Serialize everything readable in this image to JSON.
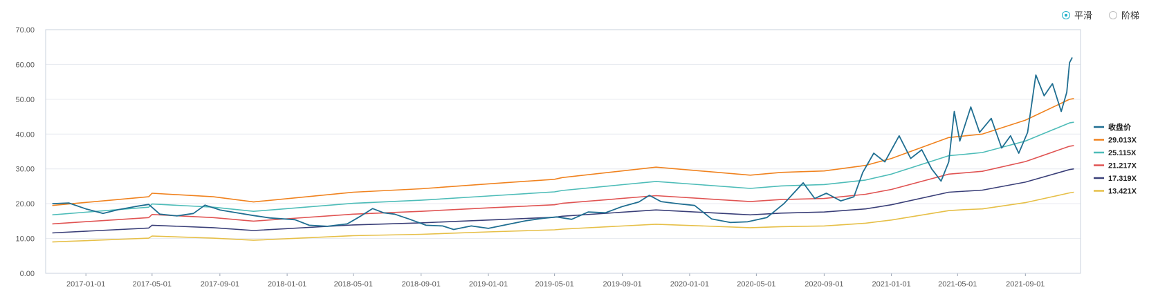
{
  "toolbar": {
    "options": [
      {
        "label": "平滑",
        "selected": true
      },
      {
        "label": "阶梯",
        "selected": false
      }
    ]
  },
  "chart_data": {
    "type": "line",
    "ylim": [
      0,
      70
    ],
    "y_ticks": [
      "0.00",
      "10.00",
      "20.00",
      "30.00",
      "40.00",
      "50.00",
      "60.00",
      "70.00"
    ],
    "x_range": [
      "2016-10-20",
      "2021-12-10"
    ],
    "x_ticks": [
      "2017-01-01",
      "2017-05-01",
      "2017-09-01",
      "2018-01-01",
      "2018-05-01",
      "2018-09-01",
      "2019-01-01",
      "2019-05-01",
      "2019-09-01",
      "2020-01-01",
      "2020-05-01",
      "2020-09-01",
      "2021-01-01",
      "2021-05-01",
      "2021-09-01"
    ],
    "grid": "horizontal",
    "legend_position": "right",
    "series": [
      {
        "name": "收盘价",
        "color": "#1f6e91",
        "points": [
          [
            "2016-11-01",
            20.0
          ],
          [
            "2016-12-01",
            20.2
          ],
          [
            "2017-01-01",
            18.5
          ],
          [
            "2017-02-01",
            17.2
          ],
          [
            "2017-03-01",
            18.3
          ],
          [
            "2017-04-01",
            19.2
          ],
          [
            "2017-04-25",
            19.8
          ],
          [
            "2017-05-15",
            17.0
          ],
          [
            "2017-06-15",
            16.5
          ],
          [
            "2017-07-15",
            17.2
          ],
          [
            "2017-08-05",
            19.6
          ],
          [
            "2017-09-01",
            18.2
          ],
          [
            "2017-10-01",
            17.4
          ],
          [
            "2017-11-01",
            16.6
          ],
          [
            "2017-12-01",
            15.9
          ],
          [
            "2018-01-15",
            15.4
          ],
          [
            "2018-02-10",
            13.8
          ],
          [
            "2018-03-15",
            13.5
          ],
          [
            "2018-04-20",
            14.2
          ],
          [
            "2018-05-15",
            16.5
          ],
          [
            "2018-06-05",
            18.6
          ],
          [
            "2018-06-25",
            17.4
          ],
          [
            "2018-07-15",
            17.0
          ],
          [
            "2018-08-10",
            15.6
          ],
          [
            "2018-09-10",
            13.8
          ],
          [
            "2018-10-10",
            13.6
          ],
          [
            "2018-10-30",
            12.6
          ],
          [
            "2018-12-01",
            13.6
          ],
          [
            "2019-01-01",
            12.9
          ],
          [
            "2019-02-10",
            14.2
          ],
          [
            "2019-03-10",
            15.1
          ],
          [
            "2019-04-10",
            15.8
          ],
          [
            "2019-05-05",
            16.2
          ],
          [
            "2019-06-01",
            15.5
          ],
          [
            "2019-07-01",
            17.6
          ],
          [
            "2019-08-01",
            17.4
          ],
          [
            "2019-09-01",
            19.2
          ],
          [
            "2019-10-01",
            20.5
          ],
          [
            "2019-10-20",
            22.4
          ],
          [
            "2019-11-10",
            20.6
          ],
          [
            "2019-12-10",
            20.0
          ],
          [
            "2020-01-10",
            19.5
          ],
          [
            "2020-02-10",
            15.6
          ],
          [
            "2020-03-15",
            14.6
          ],
          [
            "2020-04-15",
            14.8
          ],
          [
            "2020-05-20",
            16.0
          ],
          [
            "2020-06-20",
            20.0
          ],
          [
            "2020-07-25",
            26.0
          ],
          [
            "2020-08-15",
            21.5
          ],
          [
            "2020-09-05",
            23.0
          ],
          [
            "2020-10-01",
            20.8
          ],
          [
            "2020-10-25",
            22.0
          ],
          [
            "2020-11-10",
            29.0
          ],
          [
            "2020-11-30",
            34.5
          ],
          [
            "2020-12-20",
            32.0
          ],
          [
            "2021-01-15",
            39.5
          ],
          [
            "2021-02-05",
            33.0
          ],
          [
            "2021-02-25",
            35.5
          ],
          [
            "2021-03-15",
            30.0
          ],
          [
            "2021-04-01",
            26.5
          ],
          [
            "2021-04-15",
            32.0
          ],
          [
            "2021-04-25",
            46.5
          ],
          [
            "2021-05-05",
            38.0
          ],
          [
            "2021-05-25",
            47.8
          ],
          [
            "2021-06-10",
            40.5
          ],
          [
            "2021-07-01",
            44.5
          ],
          [
            "2021-07-20",
            36.0
          ],
          [
            "2021-08-05",
            39.5
          ],
          [
            "2021-08-20",
            34.5
          ],
          [
            "2021-09-05",
            40.5
          ],
          [
            "2021-09-20",
            57.0
          ],
          [
            "2021-10-05",
            51.0
          ],
          [
            "2021-10-20",
            54.5
          ],
          [
            "2021-11-05",
            46.5
          ],
          [
            "2021-11-15",
            52.0
          ],
          [
            "2021-11-20",
            60.5
          ],
          [
            "2021-11-25",
            62.0
          ]
        ]
      },
      {
        "name": "29.013X",
        "color": "#f0821e",
        "points": [
          [
            "2016-11-01",
            19.5
          ],
          [
            "2017-04-25",
            22.0
          ],
          [
            "2017-05-01",
            23.0
          ],
          [
            "2017-08-20",
            22.0
          ],
          [
            "2017-11-01",
            20.5
          ],
          [
            "2018-05-01",
            23.3
          ],
          [
            "2018-09-01",
            24.3
          ],
          [
            "2019-01-01",
            25.7
          ],
          [
            "2019-05-01",
            27.0
          ],
          [
            "2019-05-15",
            27.5
          ],
          [
            "2019-11-01",
            30.5
          ],
          [
            "2020-04-20",
            28.2
          ],
          [
            "2020-06-15",
            29.0
          ],
          [
            "2020-09-01",
            29.4
          ],
          [
            "2020-11-15",
            31.0
          ],
          [
            "2021-01-01",
            33.0
          ],
          [
            "2021-04-15",
            39.0
          ],
          [
            "2021-05-15",
            39.5
          ],
          [
            "2021-06-15",
            40.0
          ],
          [
            "2021-09-01",
            44.0
          ],
          [
            "2021-11-20",
            50.0
          ],
          [
            "2021-11-28",
            50.2
          ]
        ]
      },
      {
        "name": "25.115X",
        "color": "#4dbcb8",
        "points": [
          [
            "2016-11-01",
            16.8
          ],
          [
            "2017-04-25",
            19.0
          ],
          [
            "2017-05-01",
            19.9
          ],
          [
            "2017-08-20",
            19.0
          ],
          [
            "2017-11-01",
            17.8
          ],
          [
            "2018-05-01",
            20.1
          ],
          [
            "2018-09-01",
            21.0
          ],
          [
            "2019-01-01",
            22.2
          ],
          [
            "2019-05-01",
            23.4
          ],
          [
            "2019-05-15",
            23.8
          ],
          [
            "2019-11-01",
            26.4
          ],
          [
            "2020-04-20",
            24.4
          ],
          [
            "2020-06-15",
            25.1
          ],
          [
            "2020-09-01",
            25.5
          ],
          [
            "2020-11-15",
            26.8
          ],
          [
            "2021-01-01",
            28.5
          ],
          [
            "2021-04-15",
            33.8
          ],
          [
            "2021-05-15",
            34.2
          ],
          [
            "2021-06-15",
            34.7
          ],
          [
            "2021-09-01",
            38.0
          ],
          [
            "2021-11-20",
            43.2
          ],
          [
            "2021-11-28",
            43.4
          ]
        ]
      },
      {
        "name": "21.217X",
        "color": "#e05352",
        "points": [
          [
            "2016-11-01",
            14.2
          ],
          [
            "2017-04-25",
            16.0
          ],
          [
            "2017-05-01",
            16.9
          ],
          [
            "2017-08-20",
            16.0
          ],
          [
            "2017-11-01",
            15.0
          ],
          [
            "2018-05-01",
            17.0
          ],
          [
            "2018-09-01",
            17.8
          ],
          [
            "2019-01-01",
            18.8
          ],
          [
            "2019-05-01",
            19.7
          ],
          [
            "2019-05-15",
            20.1
          ],
          [
            "2019-11-01",
            22.3
          ],
          [
            "2020-04-20",
            20.6
          ],
          [
            "2020-06-15",
            21.2
          ],
          [
            "2020-09-01",
            21.5
          ],
          [
            "2020-11-15",
            22.7
          ],
          [
            "2021-01-01",
            24.1
          ],
          [
            "2021-04-15",
            28.5
          ],
          [
            "2021-05-15",
            28.9
          ],
          [
            "2021-06-15",
            29.3
          ],
          [
            "2021-09-01",
            32.1
          ],
          [
            "2021-11-20",
            36.5
          ],
          [
            "2021-11-28",
            36.7
          ]
        ]
      },
      {
        "name": "17.319X",
        "color": "#3a3f78",
        "points": [
          [
            "2016-11-01",
            11.6
          ],
          [
            "2017-04-25",
            13.0
          ],
          [
            "2017-05-01",
            13.8
          ],
          [
            "2017-08-20",
            13.1
          ],
          [
            "2017-11-01",
            12.3
          ],
          [
            "2018-05-01",
            13.9
          ],
          [
            "2018-09-01",
            14.5
          ],
          [
            "2019-01-01",
            15.3
          ],
          [
            "2019-05-01",
            16.1
          ],
          [
            "2019-05-15",
            16.4
          ],
          [
            "2019-11-01",
            18.2
          ],
          [
            "2020-04-20",
            16.8
          ],
          [
            "2020-06-15",
            17.3
          ],
          [
            "2020-09-01",
            17.6
          ],
          [
            "2020-11-15",
            18.5
          ],
          [
            "2021-01-01",
            19.7
          ],
          [
            "2021-04-15",
            23.3
          ],
          [
            "2021-05-15",
            23.6
          ],
          [
            "2021-06-15",
            23.9
          ],
          [
            "2021-09-01",
            26.2
          ],
          [
            "2021-11-20",
            29.8
          ],
          [
            "2021-11-28",
            30.0
          ]
        ]
      },
      {
        "name": "13.421X",
        "color": "#e6bf47",
        "points": [
          [
            "2016-11-01",
            9.0
          ],
          [
            "2017-04-25",
            10.1
          ],
          [
            "2017-05-01",
            10.7
          ],
          [
            "2017-08-20",
            10.1
          ],
          [
            "2017-11-01",
            9.5
          ],
          [
            "2018-05-01",
            10.8
          ],
          [
            "2018-09-01",
            11.2
          ],
          [
            "2019-01-01",
            11.9
          ],
          [
            "2019-05-01",
            12.5
          ],
          [
            "2019-05-15",
            12.7
          ],
          [
            "2019-11-01",
            14.1
          ],
          [
            "2020-04-20",
            13.1
          ],
          [
            "2020-06-15",
            13.4
          ],
          [
            "2020-09-01",
            13.6
          ],
          [
            "2020-11-15",
            14.4
          ],
          [
            "2021-01-01",
            15.3
          ],
          [
            "2021-04-15",
            18.0
          ],
          [
            "2021-05-15",
            18.3
          ],
          [
            "2021-06-15",
            18.5
          ],
          [
            "2021-09-01",
            20.3
          ],
          [
            "2021-11-20",
            23.1
          ],
          [
            "2021-11-28",
            23.3
          ]
        ]
      }
    ]
  }
}
